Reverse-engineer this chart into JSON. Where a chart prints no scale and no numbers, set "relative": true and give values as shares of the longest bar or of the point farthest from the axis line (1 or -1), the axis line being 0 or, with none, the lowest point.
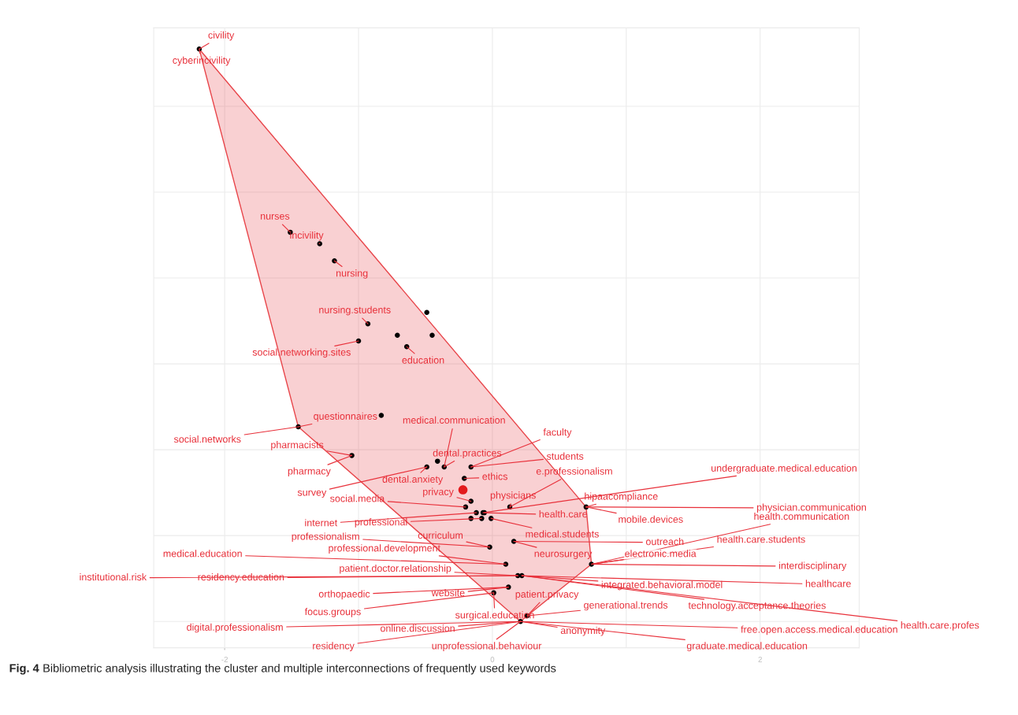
{
  "chart_data": {
    "type": "scatter",
    "relative": true,
    "xlim": [
      -2.53,
      2.74
    ],
    "xticks": [
      -2,
      0,
      2
    ],
    "grid": true,
    "series": [
      {
        "type": "area",
        "color": "#e8454a",
        "x": [
          -2.19,
          0.7,
          0.74,
          0.26,
          0.21,
          -1.45,
          -2.19
        ],
        "values": [
          1.0,
          0.2,
          0.1,
          0.01,
          0.0,
          0.34,
          1.0
        ]
      },
      {
        "type": "scatter",
        "marker": "circle",
        "color": "#000000",
        "x": [
          -2.19,
          -1.51,
          -1.29,
          -1.18,
          -0.49,
          -0.93,
          -0.45,
          -0.71,
          -1.0,
          -0.64,
          -0.83,
          -1.45,
          -1.05,
          -0.41,
          -0.36,
          -0.49,
          -0.16,
          -0.21,
          -0.16,
          -0.2,
          0.13,
          -0.07,
          0.7,
          -0.12,
          -0.06,
          -0.08,
          -0.01,
          -0.16,
          -0.02,
          0.16,
          0.74,
          0.1,
          0.19,
          0.22,
          0.12,
          0.01,
          0.26,
          0.21
        ],
        "values": [
          1.0,
          0.68,
          0.66,
          0.63,
          0.54,
          0.52,
          0.5,
          0.5,
          0.49,
          0.48,
          0.36,
          0.34,
          0.29,
          0.28,
          0.27,
          0.27,
          0.27,
          0.25,
          0.21,
          0.2,
          0.2,
          0.19,
          0.2,
          0.19,
          0.19,
          0.18,
          0.18,
          0.18,
          0.13,
          0.14,
          0.1,
          0.1,
          0.08,
          0.08,
          0.06,
          0.05,
          0.01,
          0.0
        ]
      },
      {
        "type": "scatter",
        "marker": "circle",
        "color": "#e31a1c",
        "x": [
          -0.22
        ],
        "values": [
          0.23
        ]
      }
    ],
    "annotations": [
      {
        "text": "civility",
        "x": -2.19,
        "y": 1.0
      },
      {
        "text": "cyberincivility",
        "x": -2.19,
        "y": 1.0
      },
      {
        "text": "nurses",
        "x": -1.51,
        "y": 0.68
      },
      {
        "text": "incivility",
        "x": -1.29,
        "y": 0.66
      },
      {
        "text": "nursing",
        "x": -1.18,
        "y": 0.63
      },
      {
        "text": "nursing.students",
        "x": -0.93,
        "y": 0.52
      },
      {
        "text": "social.networking.sites",
        "x": -1.0,
        "y": 0.49
      },
      {
        "text": "education",
        "x": -0.64,
        "y": 0.48
      },
      {
        "text": "social.networks",
        "x": -1.45,
        "y": 0.34
      },
      {
        "text": "questionnaires",
        "x": -1.45,
        "y": 0.34
      },
      {
        "text": "pharmacists",
        "x": -1.05,
        "y": 0.29
      },
      {
        "text": "pharmacy",
        "x": -1.05,
        "y": 0.29
      },
      {
        "text": "dental.practices",
        "x": -0.36,
        "y": 0.27
      },
      {
        "text": "medical.communication",
        "x": -0.36,
        "y": 0.27
      },
      {
        "text": "dental.anxiety",
        "x": -0.49,
        "y": 0.27
      },
      {
        "text": "survey",
        "x": -0.49,
        "y": 0.27
      },
      {
        "text": "faculty",
        "x": -0.16,
        "y": 0.27
      },
      {
        "text": "students",
        "x": -0.16,
        "y": 0.27
      },
      {
        "text": "ethics",
        "x": -0.21,
        "y": 0.25
      },
      {
        "text": "privacy",
        "x": -0.16,
        "y": 0.21
      },
      {
        "text": "social.media",
        "x": -0.2,
        "y": 0.2
      },
      {
        "text": "physicians",
        "x": 0.13,
        "y": 0.2
      },
      {
        "text": "e.professionalism",
        "x": 0.13,
        "y": 0.2
      },
      {
        "text": "undergraduate.medical.education",
        "x": -0.07,
        "y": 0.19
      },
      {
        "text": "hipaacompliance",
        "x": 0.7,
        "y": 0.2
      },
      {
        "text": "mobile.devices",
        "x": 0.7,
        "y": 0.2
      },
      {
        "text": "physician.communication",
        "x": 0.7,
        "y": 0.2
      },
      {
        "text": "internet",
        "x": -0.12,
        "y": 0.19
      },
      {
        "text": "health.care",
        "x": -0.06,
        "y": 0.19
      },
      {
        "text": "professional",
        "x": -0.08,
        "y": 0.18
      },
      {
        "text": "medical.students",
        "x": -0.01,
        "y": 0.18
      },
      {
        "text": "health.communication",
        "x": 0.74,
        "y": 0.1
      },
      {
        "text": "professionalism",
        "x": -0.02,
        "y": 0.13
      },
      {
        "text": "curriculum",
        "x": -0.02,
        "y": 0.13
      },
      {
        "text": "outreach",
        "x": 0.16,
        "y": 0.14
      },
      {
        "text": "neurosurgery",
        "x": 0.16,
        "y": 0.14
      },
      {
        "text": "health.care.students",
        "x": 0.74,
        "y": 0.1
      },
      {
        "text": "medical.education",
        "x": 0.1,
        "y": 0.1
      },
      {
        "text": "professional.development",
        "x": 0.1,
        "y": 0.1
      },
      {
        "text": "electronic.media",
        "x": 0.74,
        "y": 0.1
      },
      {
        "text": "interdisciplinary",
        "x": 0.74,
        "y": 0.1
      },
      {
        "text": "institutional.risk",
        "x": 0.19,
        "y": 0.08
      },
      {
        "text": "residency.education",
        "x": 0.19,
        "y": 0.08
      },
      {
        "text": "patient.doctor.relationship",
        "x": 0.19,
        "y": 0.08
      },
      {
        "text": "integrated.behavioral.model",
        "x": 0.22,
        "y": 0.08
      },
      {
        "text": "healthcare",
        "x": 0.22,
        "y": 0.08
      },
      {
        "text": "orthopaedic",
        "x": 0.12,
        "y": 0.06
      },
      {
        "text": "website",
        "x": 0.12,
        "y": 0.06
      },
      {
        "text": "patient.privacy",
        "x": 0.26,
        "y": 0.01
      },
      {
        "text": "technology.acceptance.theories",
        "x": 0.22,
        "y": 0.08
      },
      {
        "text": "focus.groups",
        "x": 0.01,
        "y": 0.05
      },
      {
        "text": "surgical.education",
        "x": 0.01,
        "y": 0.05
      },
      {
        "text": "health.care.profes",
        "x": 0.22,
        "y": 0.08
      },
      {
        "text": "generational.trends",
        "x": 0.26,
        "y": 0.01
      },
      {
        "text": "digital.professionalism",
        "x": 0.21,
        "y": 0.0
      },
      {
        "text": "online.discussion",
        "x": 0.21,
        "y": 0.0
      },
      {
        "text": "anonymity",
        "x": 0.21,
        "y": 0.0
      },
      {
        "text": "free.open.access.medical.education",
        "x": 0.21,
        "y": 0.0
      },
      {
        "text": "residency",
        "x": 0.21,
        "y": 0.0
      },
      {
        "text": "unprofessional.behaviour",
        "x": 0.21,
        "y": 0.0
      },
      {
        "text": "graduate.medical.education",
        "x": 0.21,
        "y": 0.0
      },
      "Fig. 4",
      "Bibliometric analysis illustrating the cluster and multiple interconnections of frequently used keywords"
    ]
  }
}
